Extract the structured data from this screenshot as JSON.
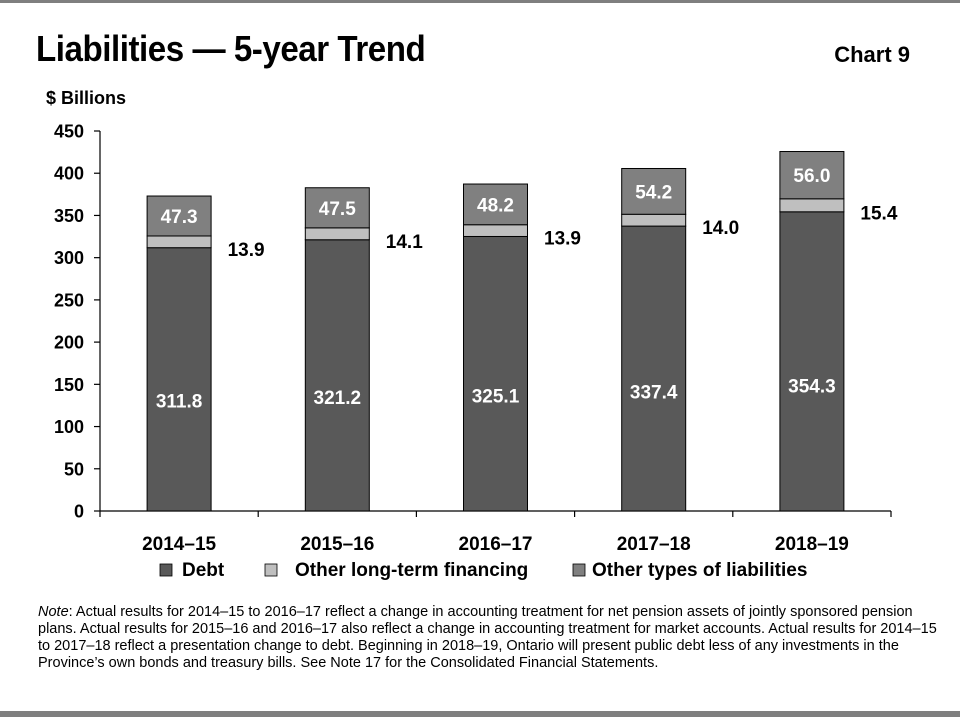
{
  "title": "Liabilities — 5-year Trend",
  "chart_number": "Chart 9",
  "note": {
    "lead": "Note",
    "text": ": Actual results for 2014–15 to 2016–17 reflect a change in accounting treatment for net pension assets of jointly sponsored pension plans. Actual results for 2015–16 and 2016–17 also reflect a change in accounting treatment for market accounts. Actual results for 2014–15 to 2017–18 reflect a presentation change to debt. Beginning in 2018–19, Ontario will present public debt less of any investments in the Province’s own bonds and treasury bills. See Note 17 for the Consolidated Financial Statements."
  },
  "chart_data": {
    "type": "bar",
    "stacked": true,
    "ylabel": "$ Billions",
    "ylim": [
      0,
      450
    ],
    "yticks": [
      0,
      50,
      100,
      150,
      200,
      250,
      300,
      350,
      400,
      450
    ],
    "categories": [
      "2014–15",
      "2015–16",
      "2016–17",
      "2017–18",
      "2018–19"
    ],
    "series": [
      {
        "name": "Debt",
        "color": "#595959",
        "values": [
          311.8,
          321.2,
          325.1,
          337.4,
          354.3
        ],
        "labels": [
          "311.8",
          "321.2",
          "325.1",
          "337.4",
          "354.3"
        ]
      },
      {
        "name": "Other long-term financing",
        "color": "#bfbfbf",
        "values": [
          13.9,
          14.1,
          13.9,
          14.0,
          15.4
        ],
        "labels": [
          "13.9",
          "14.1",
          "13.9",
          "14.0",
          "15.4"
        ]
      },
      {
        "name": "Other types of liabilities",
        "color": "#808080",
        "values": [
          47.3,
          47.5,
          48.2,
          54.2,
          56.0
        ],
        "labels": [
          "47.3",
          "47.5",
          "48.2",
          "54.2",
          "56.0"
        ]
      }
    ],
    "legend_position": "bottom"
  }
}
